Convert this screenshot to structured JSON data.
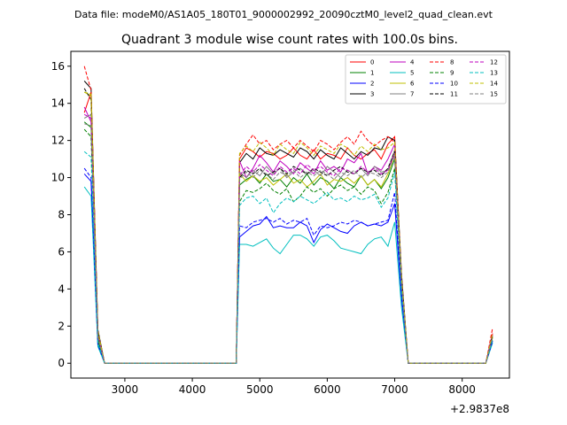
{
  "header": {
    "data_file": "Data file: modeM0/AS1A05_180T01_9000002992_20090cztM0_level2_quad_clean.evt"
  },
  "chart_data": {
    "type": "line",
    "title": "Quadrant 3 module wise count rates with 100.0s bins.",
    "xlabel": "",
    "ylabel": "",
    "x_offset_label": "+2.9837e8",
    "xlim": [
      2200,
      8700
    ],
    "ylim": [
      -0.8,
      16.8
    ],
    "x_ticks": [
      3000,
      4000,
      5000,
      6000,
      7000,
      8000
    ],
    "y_ticks": [
      0,
      2,
      4,
      6,
      8,
      10,
      12,
      14,
      16
    ],
    "legend_position": "top-right",
    "grid": false,
    "segment_1": {
      "x": [
        2400,
        2500,
        2600,
        2700
      ]
    },
    "gap_1": {
      "x": [
        2700,
        4650
      ]
    },
    "segment_2": {
      "x": [
        4650,
        4700,
        4800,
        4900,
        5000,
        5100,
        5200,
        5300,
        5400,
        5500,
        5600,
        5700,
        5800,
        5900,
        6000,
        6100,
        6200,
        6300,
        6400,
        6500,
        6600,
        6700,
        6800,
        6900,
        7000,
        7100,
        7200
      ]
    },
    "gap_2": {
      "x": [
        7200,
        8350
      ]
    },
    "segment_3": {
      "x": [
        8350,
        8450
      ]
    },
    "series": [
      {
        "name": "0",
        "color": "#ff0000",
        "dash": false,
        "seg1": [
          13.5,
          14.6,
          1.6,
          0.0
        ],
        "seg2": [
          0.0,
          11.0,
          11.6,
          11.4,
          11.1,
          11.4,
          11.3,
          11.0,
          11.2,
          11.6,
          11.2,
          11.0,
          11.5,
          11.0,
          11.3,
          11.2,
          11.0,
          11.6,
          11.2,
          11.0,
          11.3,
          11.5,
          11.0,
          11.8,
          12.2,
          4.5,
          0.0
        ],
        "seg3": [
          0.0,
          1.6
        ]
      },
      {
        "name": "1",
        "color": "#008000",
        "dash": false,
        "seg1": [
          13.0,
          12.7,
          1.2,
          0.0
        ],
        "seg2": [
          0.0,
          9.6,
          9.9,
          10.1,
          9.7,
          10.2,
          9.8,
          9.9,
          9.5,
          10.0,
          9.7,
          10.2,
          9.6,
          10.0,
          9.8,
          9.4,
          10.0,
          9.7,
          9.5,
          10.1,
          9.6,
          9.9,
          9.4,
          10.0,
          11.0,
          4.2,
          0.0
        ],
        "seg3": [
          0.0,
          1.4
        ]
      },
      {
        "name": "2",
        "color": "#0000ff",
        "dash": false,
        "seg1": [
          10.2,
          9.8,
          1.0,
          0.0
        ],
        "seg2": [
          0.0,
          6.8,
          7.1,
          7.4,
          7.5,
          7.9,
          7.3,
          7.4,
          7.3,
          7.3,
          7.6,
          7.4,
          6.5,
          7.2,
          7.5,
          7.3,
          7.1,
          7.0,
          7.4,
          7.6,
          7.4,
          7.5,
          7.4,
          7.6,
          8.6,
          3.5,
          0.0
        ],
        "seg3": [
          0.0,
          1.2
        ]
      },
      {
        "name": "3",
        "color": "#000000",
        "dash": false,
        "seg1": [
          15.2,
          14.8,
          1.8,
          0.0
        ],
        "seg2": [
          0.0,
          10.8,
          11.3,
          11.0,
          11.6,
          11.3,
          11.2,
          11.5,
          11.3,
          11.1,
          11.6,
          11.4,
          11.0,
          11.5,
          11.2,
          11.0,
          11.6,
          11.3,
          11.0,
          11.4,
          11.2,
          11.6,
          11.5,
          12.2,
          12.0,
          4.8,
          0.0
        ],
        "seg3": [
          0.0,
          1.5
        ]
      },
      {
        "name": "4",
        "color": "#bf00bf",
        "dash": false,
        "seg1": [
          13.8,
          13.0,
          1.5,
          0.0
        ],
        "seg2": [
          0.0,
          10.9,
          10.0,
          10.5,
          11.2,
          10.8,
          10.3,
          10.9,
          10.6,
          10.2,
          10.8,
          10.5,
          10.2,
          10.9,
          10.4,
          10.6,
          10.3,
          11.0,
          10.8,
          11.3,
          10.2,
          10.6,
          10.4,
          11.0,
          11.8,
          4.4,
          0.0
        ],
        "seg3": [
          0.0,
          1.5
        ]
      },
      {
        "name": "5",
        "color": "#00bfbf",
        "dash": false,
        "seg1": [
          9.5,
          9.0,
          0.9,
          0.0
        ],
        "seg2": [
          0.0,
          6.4,
          6.4,
          6.3,
          6.5,
          6.7,
          6.2,
          5.9,
          6.4,
          6.9,
          6.9,
          6.7,
          6.3,
          6.8,
          6.9,
          6.6,
          6.2,
          6.1,
          6.0,
          5.9,
          6.4,
          6.7,
          6.8,
          6.3,
          7.6,
          3.0,
          0.0
        ],
        "seg3": [
          0.0,
          1.1
        ]
      },
      {
        "name": "6",
        "color": "#bfbf00",
        "dash": false,
        "seg1": [
          14.6,
          14.4,
          1.6,
          0.0
        ],
        "seg2": [
          0.0,
          10.2,
          9.8,
          10.1,
          9.8,
          10.0,
          9.6,
          9.9,
          10.2,
          9.7,
          9.9,
          9.5,
          9.8,
          10.2,
          9.6,
          9.9,
          9.8,
          10.0,
          9.7,
          10.1,
          9.6,
          9.9,
          9.5,
          10.2,
          11.2,
          4.3,
          0.0
        ],
        "seg3": [
          0.0,
          1.4
        ]
      },
      {
        "name": "7",
        "color": "#808080",
        "dash": false,
        "seg1": [
          13.2,
          13.4,
          1.4,
          0.0
        ],
        "seg2": [
          0.0,
          10.3,
          10.0,
          10.4,
          10.1,
          10.6,
          10.2,
          10.5,
          10.0,
          10.3,
          10.5,
          10.2,
          10.4,
          10.1,
          10.6,
          10.3,
          10.0,
          10.4,
          10.2,
          10.5,
          10.1,
          10.6,
          10.3,
          10.4,
          11.5,
          4.4,
          0.0
        ],
        "seg3": [
          0.0,
          1.5
        ]
      },
      {
        "name": "8",
        "color": "#ff0000",
        "dash": true,
        "seg1": [
          16.0,
          14.7,
          1.7,
          0.0
        ],
        "seg2": [
          0.0,
          11.2,
          11.8,
          12.3,
          11.8,
          12.0,
          11.5,
          11.8,
          12.0,
          11.6,
          12.0,
          11.7,
          11.4,
          12.0,
          11.8,
          11.5,
          11.9,
          12.2,
          11.8,
          12.5,
          12.0,
          11.7,
          12.0,
          12.2,
          11.9,
          4.7,
          0.0
        ],
        "seg3": [
          0.0,
          1.9
        ]
      },
      {
        "name": "9",
        "color": "#008000",
        "dash": true,
        "seg1": [
          12.6,
          12.2,
          1.3,
          0.0
        ],
        "seg2": [
          0.0,
          8.7,
          9.3,
          9.2,
          9.4,
          9.7,
          9.3,
          9.1,
          9.4,
          8.7,
          9.0,
          9.5,
          9.2,
          9.4,
          9.0,
          9.4,
          9.6,
          9.3,
          9.5,
          9.1,
          9.5,
          9.3,
          8.6,
          9.2,
          10.5,
          4.1,
          0.0
        ],
        "seg3": [
          0.0,
          1.3
        ]
      },
      {
        "name": "10",
        "color": "#0000ff",
        "dash": true,
        "seg1": [
          10.5,
          10.0,
          1.0,
          0.0
        ],
        "seg2": [
          0.0,
          7.4,
          7.3,
          7.6,
          7.7,
          7.8,
          7.6,
          7.8,
          7.5,
          7.7,
          7.6,
          7.8,
          6.9,
          7.4,
          7.3,
          7.4,
          7.6,
          7.5,
          7.7,
          7.6,
          7.4,
          7.5,
          7.6,
          7.7,
          9.2,
          3.7,
          0.0
        ],
        "seg3": [
          0.0,
          1.2
        ]
      },
      {
        "name": "11",
        "color": "#000000",
        "dash": true,
        "seg1": [
          14.8,
          14.2,
          1.6,
          0.0
        ],
        "seg2": [
          0.0,
          10.0,
          10.4,
          10.2,
          10.5,
          10.1,
          10.3,
          10.5,
          10.2,
          10.6,
          10.4,
          10.2,
          10.5,
          10.3,
          10.1,
          10.4,
          10.6,
          10.3,
          10.2,
          10.5,
          10.3,
          10.4,
          10.1,
          10.5,
          11.4,
          4.5,
          0.0
        ],
        "seg3": [
          0.0,
          1.5
        ]
      },
      {
        "name": "12",
        "color": "#bf00bf",
        "dash": true,
        "seg1": [
          13.4,
          13.2,
          1.5,
          0.0
        ],
        "seg2": [
          0.0,
          10.1,
          10.6,
          10.3,
          10.7,
          10.4,
          10.1,
          10.6,
          10.3,
          10.5,
          10.2,
          10.7,
          10.4,
          10.6,
          10.3,
          10.1,
          10.5,
          10.4,
          10.2,
          10.6,
          10.3,
          10.5,
          10.2,
          10.4,
          11.3,
          4.4,
          0.0
        ],
        "seg3": [
          0.0,
          1.6
        ]
      },
      {
        "name": "13",
        "color": "#00bfbf",
        "dash": true,
        "seg1": [
          11.4,
          11.1,
          1.1,
          0.0
        ],
        "seg2": [
          0.0,
          8.5,
          8.9,
          9.0,
          8.6,
          8.9,
          8.1,
          8.6,
          8.9,
          8.7,
          9.0,
          8.8,
          8.6,
          8.9,
          9.2,
          8.8,
          8.9,
          8.7,
          9.0,
          8.8,
          8.9,
          9.1,
          8.4,
          8.9,
          10.3,
          4.0,
          0.0
        ],
        "seg3": [
          0.0,
          1.3
        ]
      },
      {
        "name": "14",
        "color": "#bfbf00",
        "dash": true,
        "seg1": [
          14.6,
          14.5,
          1.7,
          0.0
        ],
        "seg2": [
          0.0,
          11.3,
          11.7,
          11.4,
          11.9,
          11.6,
          11.2,
          11.8,
          11.5,
          11.3,
          11.9,
          11.6,
          11.2,
          11.7,
          11.5,
          11.3,
          11.8,
          11.6,
          11.2,
          11.7,
          11.4,
          11.8,
          11.5,
          11.6,
          11.9,
          4.6,
          0.0
        ],
        "seg3": [
          0.0,
          1.6
        ]
      },
      {
        "name": "15",
        "color": "#808080",
        "dash": true,
        "seg1": [
          12.9,
          12.8,
          1.4,
          0.0
        ],
        "seg2": [
          0.0,
          9.9,
          10.3,
          10.0,
          10.4,
          10.2,
          9.9,
          10.3,
          10.1,
          10.4,
          10.0,
          10.3,
          10.1,
          10.4,
          10.2,
          9.9,
          10.3,
          10.1,
          10.4,
          10.0,
          10.3,
          10.2,
          10.0,
          10.3,
          11.2,
          4.3,
          0.0
        ],
        "seg3": [
          0.0,
          1.4
        ]
      }
    ]
  }
}
